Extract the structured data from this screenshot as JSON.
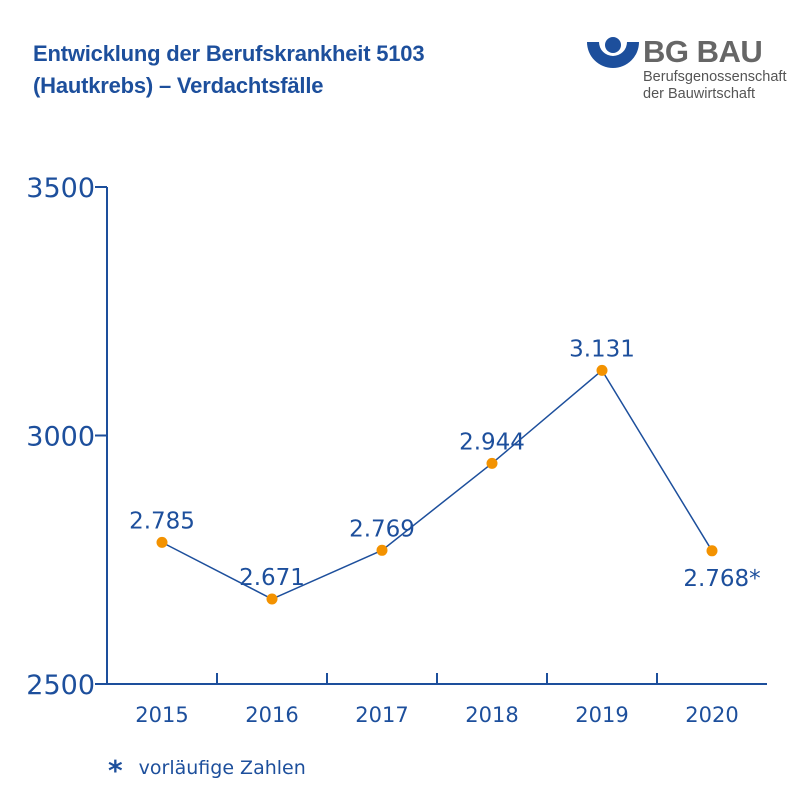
{
  "title_line1": "Entwicklung der Berufskrankheit 5103",
  "title_line2": "(Hautkrebs) – Verdachtsfälle",
  "logo": {
    "name": "BG BAU",
    "line1": "Berufsgenossenschaft",
    "line2": "der Bauwirtschaft"
  },
  "footnote": {
    "symbol": "*",
    "text": "vorläufige Zahlen"
  },
  "colors": {
    "axis": "#1d4f9c",
    "line": "#1d4f9c",
    "marker": "#f39200"
  },
  "chart_data": {
    "type": "line",
    "title": "Entwicklung der Berufskrankheit 5103 (Hautkrebs) – Verdachtsfälle",
    "categories": [
      "2015",
      "2016",
      "2017",
      "2018",
      "2019",
      "2020"
    ],
    "values": [
      2785,
      2671,
      2769,
      2944,
      3131,
      2768
    ],
    "data_labels": [
      "2.785",
      "2.671",
      "2.769",
      "2.944",
      "3.131",
      "2.768*"
    ],
    "ylim": [
      2500,
      3500
    ],
    "yticks": [
      2500,
      3000,
      3500
    ],
    "ytick_labels": [
      "2500",
      "3000",
      "3500"
    ],
    "xlabel": "",
    "ylabel": "",
    "grid": false,
    "legend": "none"
  }
}
